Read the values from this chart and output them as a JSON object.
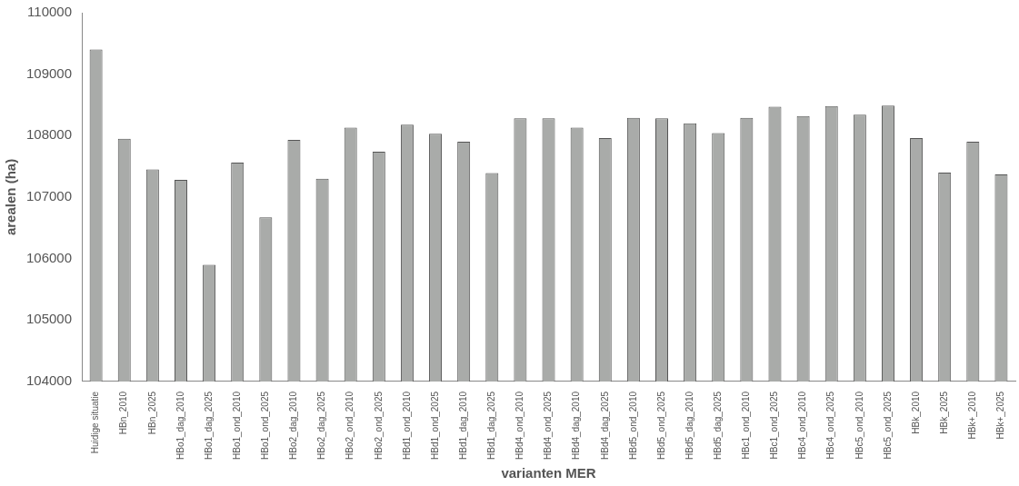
{
  "chart_data": {
    "type": "bar",
    "xlabel": "varianten MER",
    "ylabel": "arealen (ha)",
    "categories": [
      "Huidige situatie",
      "HBn_2010",
      "HBn_2025",
      "HBo1_dag_2010",
      "HBo1_dag_2025",
      "HBo1_ond_2010",
      "HBo1_ond_2025",
      "HBo2_dag_2010",
      "HBo2_dag_2025",
      "HBo2_ond_2010",
      "HBo2_ond_2025",
      "HBd1_ond_2010",
      "HBd1_ond_2025",
      "HBd1_dag_2010",
      "HBd1_dag_2025",
      "HBd4_ond_2010",
      "HBd4_ond_2025",
      "HBd4_dag_2010",
      "HBd4_dag_2025",
      "HBd5_ond_2010",
      "HBd5_ond_2025",
      "HBd5_dag_2010",
      "HBd5_dag_2025",
      "HBc1_ond_2010",
      "HBc1_ond_2025",
      "HBc4_ond_2010",
      "HBc4_ond_2025",
      "HBc5_ond_2010",
      "HBc5_ond_2025",
      "HBk_2010",
      "HBk_2025",
      "HBk+_2010",
      "HBk+_2025"
    ],
    "values": [
      109400,
      107950,
      107450,
      107280,
      105900,
      107560,
      106670,
      107930,
      107300,
      108130,
      107740,
      108180,
      108030,
      107900,
      107390,
      108280,
      108280,
      108130,
      107960,
      108290,
      108280,
      108200,
      108040,
      108290,
      108470,
      108320,
      108480,
      108340,
      108490,
      107960,
      107400,
      107900,
      107370
    ],
    "color": "#a9aba9",
    "ylim": [
      104000,
      110000
    ],
    "yticks": [
      104000,
      105000,
      106000,
      107000,
      108000,
      109000,
      110000
    ],
    "grid": false,
    "legend": false
  }
}
